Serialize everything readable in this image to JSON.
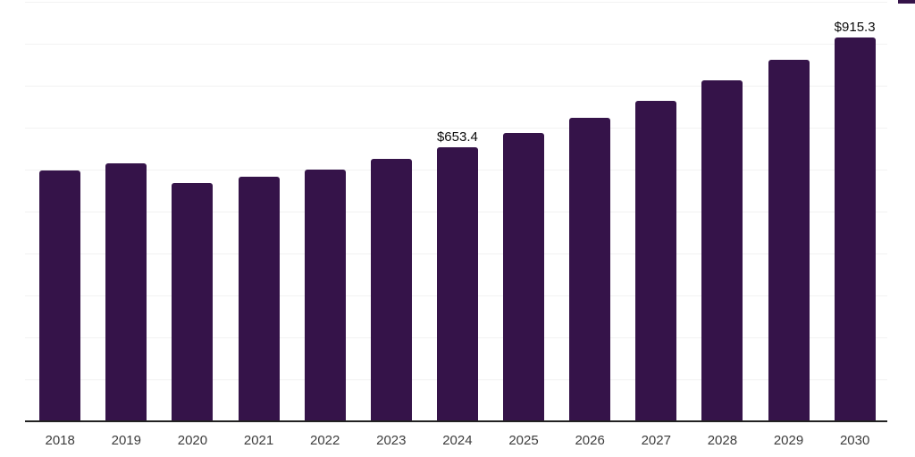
{
  "chart_data": {
    "type": "bar",
    "title": "",
    "xlabel": "",
    "ylabel": "",
    "categories": [
      "2018",
      "2019",
      "2020",
      "2021",
      "2022",
      "2023",
      "2024",
      "2025",
      "2026",
      "2027",
      "2028",
      "2029",
      "2030"
    ],
    "values": [
      597.9,
      615.2,
      567.5,
      582.4,
      600.3,
      624.9,
      653.4,
      686.1,
      723.5,
      764.0,
      812.8,
      861.9,
      915.3
    ],
    "labeled_points": [
      {
        "category": "2024",
        "label": "$653.4"
      },
      {
        "category": "2030",
        "label": "$915.3"
      }
    ],
    "ylim": [
      0,
      1000
    ],
    "grid_step": 100,
    "grid": true,
    "legend": false,
    "y_tick_labels_visible": false
  },
  "colors": {
    "bar": "#351349",
    "gridline": "#f2f2f2",
    "axis_line": "#222222",
    "tick_label": "#3d3d3d",
    "data_label": "#0a0a0a",
    "background": "#ffffff",
    "corner_fragment": "#351349"
  }
}
